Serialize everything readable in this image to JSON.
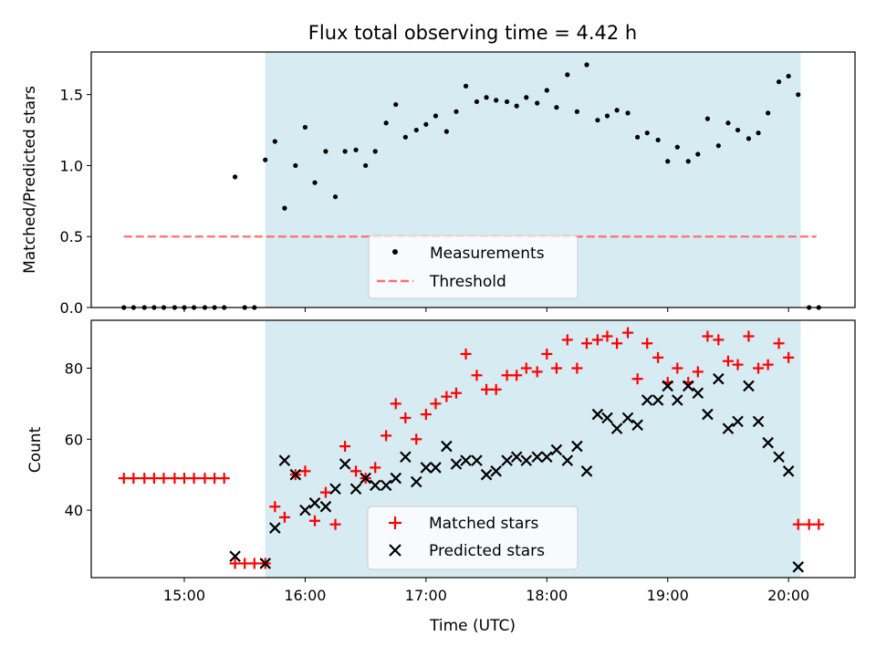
{
  "title": "Flux total observing time = 4.42 h",
  "colors": {
    "shade": "#add8e6",
    "threshold": "#ff7070",
    "matched": "#ff0000",
    "predicted": "#000000",
    "measurements": "#000000"
  },
  "chart_data": [
    {
      "type": "scatter",
      "ylabel": "Matched/Predicted stars",
      "xlabel": "",
      "ylim": [
        0,
        1.8
      ],
      "yticks": [
        0.0,
        0.5,
        1.0,
        1.5
      ],
      "ytick_labels": [
        "0.0",
        "0.5",
        "1.0",
        "1.5"
      ],
      "xlim_hours": [
        14.23,
        20.55
      ],
      "shaded_span_hours": [
        15.67,
        20.1
      ],
      "threshold": {
        "name": "Threshold",
        "value": 0.5,
        "x_hours": [
          14.5,
          20.23
        ]
      },
      "legend_position": "lower-center",
      "series": [
        {
          "name": "Measurements",
          "x_hours": [
            14.5,
            14.58,
            14.67,
            14.75,
            14.83,
            14.92,
            15.0,
            15.08,
            15.17,
            15.25,
            15.33,
            15.42,
            15.5,
            15.58,
            15.67,
            15.75,
            15.83,
            15.92,
            16.0,
            16.08,
            16.17,
            16.25,
            16.33,
            16.42,
            16.5,
            16.58,
            16.67,
            16.75,
            16.83,
            16.92,
            17.0,
            17.08,
            17.17,
            17.25,
            17.33,
            17.42,
            17.5,
            17.58,
            17.67,
            17.75,
            17.83,
            17.92,
            18.0,
            18.08,
            18.17,
            18.25,
            18.33,
            18.42,
            18.5,
            18.58,
            18.67,
            18.75,
            18.83,
            18.92,
            19.0,
            19.08,
            19.17,
            19.25,
            19.33,
            19.42,
            19.5,
            19.58,
            19.67,
            19.75,
            19.83,
            19.92,
            20.0,
            20.08,
            20.17,
            20.25
          ],
          "y": [
            0,
            0,
            0,
            0,
            0,
            0,
            0,
            0,
            0,
            0,
            0,
            0.92,
            0,
            0,
            1.04,
            1.17,
            0.7,
            1.0,
            1.27,
            0.88,
            1.1,
            0.78,
            1.1,
            1.11,
            1.0,
            1.1,
            1.3,
            1.43,
            1.2,
            1.25,
            1.29,
            1.35,
            1.24,
            1.38,
            1.56,
            1.45,
            1.48,
            1.46,
            1.45,
            1.42,
            1.48,
            1.44,
            1.53,
            1.41,
            1.64,
            1.38,
            1.71,
            1.32,
            1.35,
            1.39,
            1.37,
            1.2,
            1.23,
            1.18,
            1.03,
            1.13,
            1.03,
            1.08,
            1.33,
            1.14,
            1.3,
            1.25,
            1.19,
            1.23,
            1.37,
            1.59,
            1.63,
            1.5,
            0,
            0
          ]
        }
      ]
    },
    {
      "type": "scatter",
      "ylabel": "Count",
      "xlabel": "Time (UTC)",
      "ylim": [
        21,
        93.5
      ],
      "yticks": [
        40,
        60,
        80
      ],
      "ytick_labels": [
        "40",
        "60",
        "80"
      ],
      "xticks_hours": [
        15,
        16,
        17,
        18,
        19,
        20
      ],
      "xtick_labels": [
        "15:00",
        "16:00",
        "17:00",
        "18:00",
        "19:00",
        "20:00"
      ],
      "xlim_hours": [
        14.23,
        20.55
      ],
      "shaded_span_hours": [
        15.67,
        20.1
      ],
      "legend_position": "lower-center",
      "series": [
        {
          "name": "Matched stars",
          "marker": "+",
          "x_hours": [
            14.5,
            14.58,
            14.67,
            14.75,
            14.83,
            14.92,
            15.0,
            15.08,
            15.17,
            15.25,
            15.33,
            15.42,
            15.5,
            15.58,
            15.67,
            15.75,
            15.83,
            15.92,
            16.0,
            16.08,
            16.17,
            16.25,
            16.33,
            16.42,
            16.5,
            16.58,
            16.67,
            16.75,
            16.83,
            16.92,
            17.0,
            17.08,
            17.17,
            17.25,
            17.33,
            17.42,
            17.5,
            17.58,
            17.67,
            17.75,
            17.83,
            17.92,
            18.0,
            18.08,
            18.17,
            18.25,
            18.33,
            18.42,
            18.5,
            18.58,
            18.67,
            18.75,
            18.83,
            18.92,
            19.0,
            19.08,
            19.17,
            19.25,
            19.33,
            19.42,
            19.5,
            19.58,
            19.67,
            19.75,
            19.83,
            19.92,
            20.0,
            20.08,
            20.17,
            20.25
          ],
          "y": [
            49,
            49,
            49,
            49,
            49,
            49,
            49,
            49,
            49,
            49,
            49,
            25,
            25,
            25,
            25,
            41,
            38,
            50,
            51,
            37,
            45,
            36,
            58,
            51,
            49,
            52,
            61,
            70,
            66,
            60,
            67,
            70,
            72,
            73,
            84,
            78,
            74,
            74,
            78,
            78,
            80,
            79,
            84,
            80,
            88,
            80,
            87,
            88,
            89,
            87,
            90,
            77,
            87,
            83,
            76,
            80,
            76,
            79,
            89,
            88,
            82,
            81,
            89,
            80,
            81,
            87,
            83,
            36,
            36,
            36
          ]
        },
        {
          "name": "Predicted stars",
          "marker": "x",
          "x_hours": [
            15.42,
            15.67,
            15.75,
            15.83,
            15.92,
            16.0,
            16.08,
            16.17,
            16.25,
            16.33,
            16.42,
            16.5,
            16.58,
            16.67,
            16.75,
            16.83,
            16.92,
            17.0,
            17.08,
            17.17,
            17.25,
            17.33,
            17.42,
            17.5,
            17.58,
            17.67,
            17.75,
            17.83,
            17.92,
            18.0,
            18.08,
            18.17,
            18.25,
            18.33,
            18.42,
            18.5,
            18.58,
            18.67,
            18.75,
            18.83,
            18.92,
            19.0,
            19.08,
            19.17,
            19.25,
            19.33,
            19.42,
            19.5,
            19.58,
            19.67,
            19.75,
            19.83,
            19.92,
            20.0,
            20.08
          ],
          "y": [
            27,
            25,
            35,
            54,
            50,
            40,
            42,
            41,
            46,
            53,
            46,
            49,
            47,
            47,
            49,
            55,
            48,
            52,
            52,
            58,
            53,
            54,
            54,
            50,
            51,
            54,
            55,
            54,
            55,
            55,
            57,
            54,
            58,
            51,
            67,
            66,
            63,
            66,
            64,
            71,
            71,
            75,
            71,
            75,
            73,
            67,
            77,
            63,
            65,
            75,
            65,
            59,
            55,
            51,
            24
          ]
        }
      ]
    }
  ]
}
